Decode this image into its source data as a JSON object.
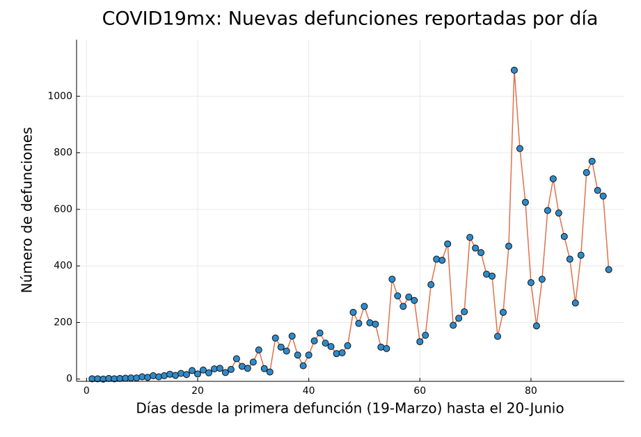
{
  "chart_data": {
    "type": "scatter-line",
    "title": "COVID19mx: Nuevas defunciones reportadas por día",
    "x_label": "Días desde la primera defunción (19-Marzo) hasta el 20-Junio",
    "y_label": "Número de defunciones",
    "x": [
      1,
      2,
      3,
      4,
      5,
      6,
      7,
      8,
      9,
      10,
      11,
      12,
      13,
      14,
      15,
      16,
      17,
      18,
      19,
      20,
      21,
      22,
      23,
      24,
      25,
      26,
      27,
      28,
      29,
      30,
      31,
      32,
      33,
      34,
      35,
      36,
      37,
      38,
      39,
      40,
      41,
      42,
      43,
      44,
      45,
      46,
      47,
      48,
      49,
      50,
      51,
      52,
      53,
      54,
      55,
      56,
      57,
      58,
      59,
      60,
      61,
      62,
      63,
      64,
      65,
      66,
      67,
      68,
      69,
      70,
      71,
      72,
      73,
      74,
      75,
      76,
      77,
      78,
      79,
      80,
      81,
      82,
      83,
      84,
      85,
      86,
      87,
      88,
      89,
      90,
      91,
      92,
      93,
      94
    ],
    "values": [
      1,
      1,
      0,
      2,
      1,
      2,
      3,
      4,
      4,
      8,
      6,
      12,
      8,
      12,
      17,
      13,
      20,
      16,
      30,
      18,
      32,
      22,
      36,
      38,
      23,
      34,
      72,
      45,
      38,
      60,
      103,
      37,
      25,
      145,
      113,
      99,
      152,
      85,
      47,
      85,
      135,
      163,
      127,
      115,
      90,
      93,
      118,
      236,
      197,
      257,
      199,
      194,
      113,
      108,
      353,
      294,
      257,
      290,
      278,
      132,
      155,
      334,
      424,
      420,
      478,
      190,
      215,
      238,
      501,
      463,
      447,
      371,
      364,
      151,
      236,
      470,
      1092,
      815,
      625,
      341,
      188,
      353,
      596,
      708,
      587,
      504,
      424,
      269,
      438,
      730,
      770,
      667,
      647,
      387
    ],
    "line_color": "#e0704a",
    "marker_color": "#2e8bcb",
    "xlim": [
      -1.8,
      96.8
    ],
    "xticks": [
      0,
      20,
      40,
      60,
      80
    ],
    "ylim": [
      -8,
      1200
    ],
    "yticks": [
      0,
      200,
      400,
      600,
      800,
      1000
    ],
    "grid": true
  }
}
